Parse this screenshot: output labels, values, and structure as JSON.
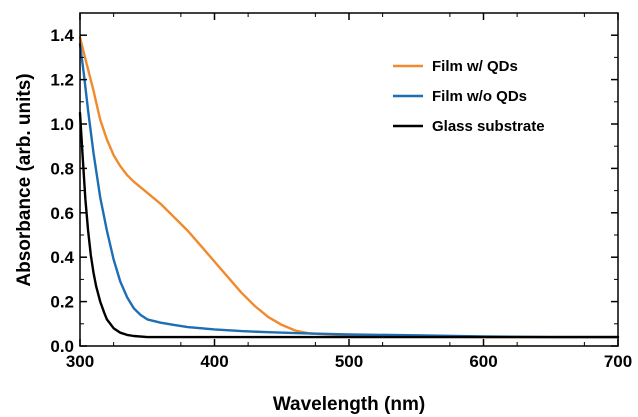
{
  "chart_data": {
    "type": "line",
    "title": "",
    "xlabel": "Wavelength (nm)",
    "ylabel": "Absorbance (arb. units)",
    "xlim": [
      300,
      700
    ],
    "ylim": [
      0.0,
      1.5
    ],
    "x_ticks": [
      300,
      400,
      500,
      600,
      700
    ],
    "x_tick_labels": [
      "300",
      "400",
      "500",
      "600",
      "700"
    ],
    "y_ticks": [
      0.0,
      0.2,
      0.4,
      0.6,
      0.8,
      1.0,
      1.2,
      1.4
    ],
    "y_tick_labels": [
      "0.0",
      "0.2",
      "0.4",
      "0.6",
      "0.8",
      "1.0",
      "1.2",
      "1.4"
    ],
    "grid": false,
    "legend_position": "top-right",
    "series": [
      {
        "name": "Film w/ QDs",
        "color": "#f08a2c",
        "x": [
          300,
          305,
          310,
          315,
          320,
          325,
          330,
          335,
          340,
          350,
          360,
          370,
          380,
          390,
          400,
          410,
          420,
          430,
          440,
          450,
          460,
          470,
          480,
          500,
          550,
          600,
          650,
          700
        ],
        "y": [
          1.39,
          1.27,
          1.15,
          1.02,
          0.93,
          0.86,
          0.81,
          0.77,
          0.74,
          0.69,
          0.64,
          0.58,
          0.52,
          0.45,
          0.38,
          0.31,
          0.24,
          0.18,
          0.13,
          0.095,
          0.07,
          0.057,
          0.053,
          0.048,
          0.043,
          0.04,
          0.04,
          0.04
        ]
      },
      {
        "name": "Film w/o QDs",
        "color": "#1f6db3",
        "x": [
          300,
          303,
          306,
          310,
          315,
          320,
          325,
          330,
          335,
          340,
          345,
          350,
          360,
          370,
          380,
          400,
          420,
          440,
          460,
          480,
          500,
          550,
          600,
          650,
          700
        ],
        "y": [
          1.36,
          1.22,
          1.06,
          0.87,
          0.67,
          0.52,
          0.39,
          0.29,
          0.22,
          0.17,
          0.14,
          0.12,
          0.105,
          0.095,
          0.085,
          0.075,
          0.067,
          0.062,
          0.058,
          0.055,
          0.052,
          0.048,
          0.043,
          0.04,
          0.04
        ]
      },
      {
        "name": "Glass substrate",
        "color": "#000000",
        "x": [
          300,
          302,
          304,
          306,
          308,
          310,
          312,
          315,
          318,
          320,
          325,
          330,
          335,
          340,
          350,
          360,
          380,
          400,
          450,
          500,
          550,
          600,
          650,
          700
        ],
        "y": [
          1.05,
          0.85,
          0.66,
          0.52,
          0.41,
          0.33,
          0.27,
          0.2,
          0.15,
          0.12,
          0.08,
          0.06,
          0.05,
          0.045,
          0.04,
          0.04,
          0.04,
          0.04,
          0.04,
          0.04,
          0.04,
          0.04,
          0.04,
          0.04
        ]
      }
    ]
  }
}
